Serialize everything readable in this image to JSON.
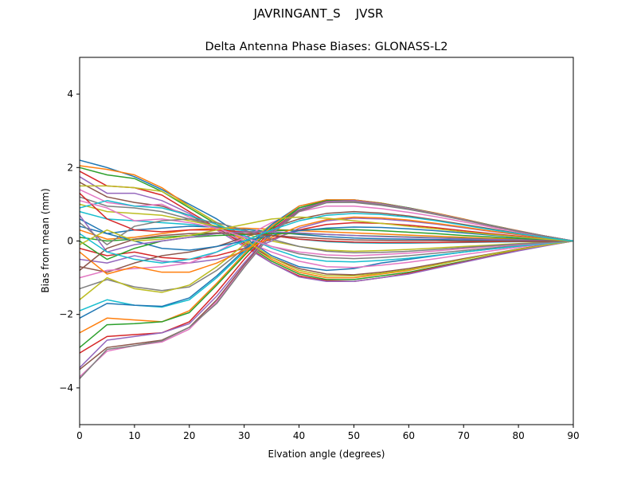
{
  "suptitle": "JAVRINGANT_S    JVSR",
  "chart_data": {
    "type": "line",
    "title": "Delta Antenna Phase Biases: GLONASS-L2",
    "xlabel": "Elvation angle (degrees)",
    "ylabel": "Bias from mean (mm)",
    "xlim": [
      0,
      90
    ],
    "ylim": [
      -5,
      5
    ],
    "xticks": [
      0,
      10,
      20,
      30,
      40,
      50,
      60,
      70,
      80,
      90
    ],
    "yticks": [
      -4,
      -2,
      0,
      2,
      4
    ],
    "ytick_labels": [
      "−4",
      "−2",
      "0",
      "2",
      "4"
    ],
    "grid": false,
    "x": [
      0,
      5,
      10,
      15,
      20,
      25,
      30,
      35,
      40,
      45,
      50,
      55,
      60,
      65,
      70,
      75,
      80,
      85,
      90
    ],
    "colors": [
      "#1f77b4",
      "#ff7f0e",
      "#2ca02c",
      "#d62728",
      "#9467bd",
      "#8c564b",
      "#e377c2",
      "#7f7f7f",
      "#bcbd22",
      "#17becf"
    ],
    "series": [
      {
        "values": [
          2.2,
          2.0,
          1.75,
          1.4,
          1.0,
          0.6,
          0.1,
          -0.4,
          -0.7,
          -0.8,
          -0.75,
          -0.6,
          -0.5,
          -0.4,
          -0.3,
          -0.22,
          -0.14,
          -0.06,
          0
        ]
      },
      {
        "values": [
          2.05,
          1.95,
          1.8,
          1.45,
          0.95,
          0.5,
          0.0,
          -0.5,
          -0.85,
          -1.0,
          -1.0,
          -0.9,
          -0.8,
          -0.65,
          -0.5,
          -0.36,
          -0.22,
          -0.1,
          0
        ]
      },
      {
        "values": [
          2.0,
          1.8,
          1.7,
          1.35,
          0.9,
          0.45,
          -0.05,
          -0.55,
          -0.9,
          -1.05,
          -1.05,
          -0.95,
          -0.85,
          -0.7,
          -0.55,
          -0.4,
          -0.25,
          -0.12,
          0
        ]
      },
      {
        "values": [
          1.9,
          1.5,
          1.45,
          1.25,
          0.8,
          0.35,
          -0.1,
          -0.6,
          -0.95,
          -1.08,
          -1.1,
          -1.0,
          -0.88,
          -0.72,
          -0.57,
          -0.41,
          -0.26,
          -0.12,
          0
        ]
      },
      {
        "values": [
          1.75,
          1.3,
          1.3,
          1.1,
          0.75,
          0.3,
          -0.15,
          -0.6,
          -0.98,
          -1.1,
          -1.1,
          -1.0,
          -0.9,
          -0.74,
          -0.58,
          -0.42,
          -0.27,
          -0.13,
          0
        ]
      },
      {
        "values": [
          1.6,
          1.2,
          1.05,
          0.95,
          0.7,
          0.35,
          -0.05,
          -0.45,
          -0.75,
          -0.9,
          -0.92,
          -0.85,
          -0.75,
          -0.62,
          -0.48,
          -0.35,
          -0.22,
          -0.1,
          0
        ]
      },
      {
        "values": [
          1.4,
          1.05,
          0.95,
          1.0,
          0.65,
          0.3,
          0.0,
          -0.3,
          -0.55,
          -0.7,
          -0.72,
          -0.66,
          -0.58,
          -0.48,
          -0.37,
          -0.27,
          -0.17,
          -0.08,
          0
        ]
      },
      {
        "values": [
          1.2,
          0.95,
          0.9,
          0.8,
          0.6,
          0.4,
          0.15,
          -0.15,
          -0.35,
          -0.45,
          -0.48,
          -0.45,
          -0.4,
          -0.33,
          -0.26,
          -0.19,
          -0.12,
          -0.06,
          0
        ]
      },
      {
        "values": [
          1.0,
          0.8,
          0.75,
          0.7,
          0.55,
          0.4,
          0.2,
          0.0,
          -0.15,
          -0.25,
          -0.28,
          -0.26,
          -0.23,
          -0.19,
          -0.15,
          -0.11,
          -0.07,
          -0.03,
          0
        ]
      },
      {
        "values": [
          0.8,
          0.6,
          0.55,
          0.5,
          0.45,
          0.38,
          0.28,
          0.15,
          0.05,
          -0.02,
          -0.05,
          -0.06,
          -0.06,
          -0.05,
          -0.04,
          -0.03,
          -0.02,
          -0.01,
          0
        ]
      },
      {
        "values": [
          0.6,
          0.2,
          0.3,
          0.35,
          0.4,
          0.38,
          0.32,
          0.25,
          0.18,
          0.12,
          0.08,
          0.06,
          0.05,
          0.04,
          0.03,
          0.02,
          0.01,
          0.0,
          0
        ]
      },
      {
        "values": [
          0.3,
          0.05,
          0.1,
          0.2,
          0.3,
          0.35,
          0.35,
          0.32,
          0.28,
          0.25,
          0.22,
          0.19,
          0.16,
          0.13,
          0.1,
          0.07,
          0.05,
          0.02,
          0
        ]
      },
      {
        "values": [
          0.1,
          0.0,
          0.05,
          0.1,
          0.15,
          0.2,
          0.25,
          0.28,
          0.3,
          0.32,
          0.31,
          0.28,
          0.24,
          0.2,
          0.15,
          0.11,
          0.07,
          0.03,
          0
        ]
      },
      {
        "values": [
          -0.2,
          -0.4,
          -0.3,
          -0.45,
          -0.5,
          -0.4,
          -0.2,
          0.05,
          0.3,
          0.45,
          0.5,
          0.48,
          0.43,
          0.36,
          0.28,
          0.2,
          0.13,
          0.06,
          0
        ]
      },
      {
        "values": [
          -0.5,
          -0.6,
          -0.4,
          -0.55,
          -0.6,
          -0.5,
          -0.3,
          0.0,
          0.35,
          0.55,
          0.62,
          0.6,
          0.54,
          0.46,
          0.36,
          0.26,
          0.17,
          0.08,
          0
        ]
      },
      {
        "values": [
          -0.7,
          -0.85,
          -0.6,
          -0.4,
          -0.3,
          -0.15,
          0.1,
          0.35,
          0.6,
          0.75,
          0.8,
          0.76,
          0.68,
          0.57,
          0.45,
          0.33,
          0.21,
          0.1,
          0
        ]
      },
      {
        "values": [
          -1.0,
          -0.8,
          -0.75,
          -0.7,
          -0.6,
          -0.3,
          0.1,
          0.5,
          0.8,
          0.95,
          0.95,
          0.88,
          0.78,
          0.66,
          0.52,
          0.38,
          0.24,
          0.11,
          0
        ]
      },
      {
        "values": [
          -1.3,
          -1.05,
          -1.25,
          -1.35,
          -1.25,
          -0.8,
          -0.2,
          0.4,
          0.85,
          1.05,
          1.05,
          0.97,
          0.86,
          0.72,
          0.57,
          0.41,
          0.26,
          0.12,
          0
        ]
      },
      {
        "values": [
          -1.6,
          -1.0,
          -1.3,
          -1.4,
          -1.2,
          -0.7,
          -0.1,
          0.45,
          0.9,
          1.1,
          1.1,
          1.0,
          0.88,
          0.74,
          0.58,
          0.42,
          0.27,
          0.13,
          0
        ]
      },
      {
        "values": [
          -1.9,
          -1.6,
          -1.75,
          -1.8,
          -1.6,
          -1.0,
          -0.3,
          0.4,
          0.9,
          1.1,
          1.12,
          1.02,
          0.9,
          0.75,
          0.59,
          0.43,
          0.27,
          0.13,
          0
        ]
      },
      {
        "values": [
          -2.1,
          -1.7,
          -1.75,
          -1.78,
          -1.55,
          -0.95,
          -0.25,
          0.45,
          0.95,
          1.12,
          1.12,
          1.03,
          0.9,
          0.75,
          0.59,
          0.43,
          0.27,
          0.13,
          0
        ]
      },
      {
        "values": [
          -2.5,
          -2.1,
          -2.15,
          -2.2,
          -1.9,
          -1.15,
          -0.35,
          0.4,
          0.95,
          1.12,
          1.12,
          1.03,
          0.9,
          0.76,
          0.6,
          0.43,
          0.28,
          0.13,
          0
        ]
      },
      {
        "values": [
          -2.9,
          -2.28,
          -2.25,
          -2.2,
          -1.95,
          -1.2,
          -0.4,
          0.35,
          0.9,
          1.1,
          1.1,
          1.02,
          0.9,
          0.75,
          0.59,
          0.43,
          0.27,
          0.13,
          0
        ]
      },
      {
        "values": [
          -3.05,
          -2.6,
          -2.55,
          -2.5,
          -2.2,
          -1.4,
          -0.5,
          0.3,
          0.85,
          1.08,
          1.1,
          1.01,
          0.89,
          0.74,
          0.58,
          0.42,
          0.27,
          0.13,
          0
        ]
      },
      {
        "values": [
          -3.45,
          -2.7,
          -2.6,
          -2.5,
          -2.25,
          -1.5,
          -0.6,
          0.25,
          0.85,
          1.07,
          1.1,
          1.01,
          0.89,
          0.74,
          0.58,
          0.42,
          0.27,
          0.13,
          0
        ]
      },
      {
        "values": [
          -3.5,
          -2.9,
          -2.8,
          -2.7,
          -2.35,
          -1.6,
          -0.65,
          0.22,
          0.82,
          1.05,
          1.08,
          1.0,
          0.88,
          0.74,
          0.58,
          0.42,
          0.27,
          0.13,
          0
        ]
      },
      {
        "values": [
          -3.7,
          -3.0,
          -2.85,
          -2.75,
          -2.4,
          -1.65,
          -0.7,
          0.2,
          0.8,
          1.05,
          1.08,
          1.0,
          0.88,
          0.74,
          0.58,
          0.42,
          0.27,
          0.13,
          0
        ]
      },
      {
        "values": [
          -3.75,
          -2.95,
          -2.85,
          -2.72,
          -2.35,
          -1.7,
          -0.72,
          0.18,
          0.8,
          1.04,
          1.07,
          0.99,
          0.87,
          0.73,
          0.57,
          0.42,
          0.27,
          0.13,
          0
        ]
      },
      {
        "values": [
          1.5,
          1.5,
          1.45,
          1.35,
          0.95,
          0.5,
          0.05,
          -0.45,
          -0.8,
          -0.95,
          -0.95,
          -0.88,
          -0.78,
          -0.65,
          -0.5,
          -0.36,
          -0.23,
          -0.11,
          0
        ]
      },
      {
        "values": [
          0.9,
          1.1,
          0.95,
          0.9,
          0.7,
          0.45,
          0.15,
          -0.2,
          -0.45,
          -0.55,
          -0.57,
          -0.53,
          -0.47,
          -0.39,
          -0.3,
          -0.22,
          -0.14,
          -0.07,
          0
        ]
      },
      {
        "values": [
          0.4,
          0.2,
          0.0,
          -0.2,
          -0.25,
          -0.15,
          0.0,
          0.15,
          0.28,
          0.35,
          0.38,
          0.37,
          0.33,
          0.28,
          0.22,
          0.16,
          0.1,
          0.05,
          0
        ]
      },
      {
        "values": [
          -0.3,
          -0.9,
          -0.7,
          -0.85,
          -0.85,
          -0.6,
          -0.25,
          0.1,
          0.4,
          0.58,
          0.65,
          0.63,
          0.57,
          0.48,
          0.38,
          0.27,
          0.18,
          0.08,
          0
        ]
      },
      {
        "values": [
          0.0,
          -0.5,
          -0.2,
          0.0,
          0.1,
          0.15,
          0.18,
          0.2,
          0.2,
          0.18,
          0.15,
          0.13,
          0.11,
          0.09,
          0.07,
          0.05,
          0.03,
          0.01,
          0
        ]
      },
      {
        "values": [
          1.3,
          0.6,
          0.3,
          0.25,
          0.3,
          0.3,
          0.25,
          0.15,
          0.05,
          0.0,
          -0.03,
          -0.04,
          -0.04,
          -0.04,
          -0.03,
          -0.02,
          -0.01,
          -0.01,
          0
        ]
      },
      {
        "values": [
          0.7,
          -0.3,
          -0.1,
          0.0,
          0.1,
          0.2,
          0.25,
          0.25,
          0.22,
          0.18,
          0.15,
          0.12,
          0.1,
          0.08,
          0.06,
          0.04,
          0.03,
          0.01,
          0
        ]
      },
      {
        "values": [
          -0.8,
          -0.2,
          0.05,
          0.15,
          0.2,
          0.22,
          0.2,
          0.15,
          0.1,
          0.06,
          0.03,
          0.02,
          0.01,
          0.01,
          0.0,
          0.0,
          0.0,
          0.0,
          0
        ]
      },
      {
        "values": [
          1.1,
          0.9,
          0.55,
          0.6,
          0.5,
          0.35,
          0.1,
          -0.15,
          -0.3,
          -0.38,
          -0.4,
          -0.37,
          -0.33,
          -0.27,
          -0.21,
          -0.15,
          -0.1,
          -0.05,
          0
        ]
      },
      {
        "values": [
          0.5,
          -0.1,
          0.4,
          0.55,
          0.6,
          0.5,
          0.3,
          0.05,
          -0.15,
          -0.28,
          -0.32,
          -0.31,
          -0.28,
          -0.23,
          -0.18,
          -0.13,
          -0.08,
          -0.04,
          0
        ]
      },
      {
        "values": [
          -0.1,
          0.3,
          0.0,
          0.05,
          0.15,
          0.3,
          0.45,
          0.6,
          0.65,
          0.62,
          0.55,
          0.48,
          0.4,
          0.33,
          0.25,
          0.18,
          0.11,
          0.05,
          0
        ]
      },
      {
        "values": [
          0.2,
          -0.3,
          -0.5,
          -0.6,
          -0.5,
          -0.3,
          0.0,
          0.3,
          0.55,
          0.7,
          0.75,
          0.72,
          0.65,
          0.55,
          0.43,
          0.31,
          0.2,
          0.09,
          0
        ]
      }
    ]
  }
}
